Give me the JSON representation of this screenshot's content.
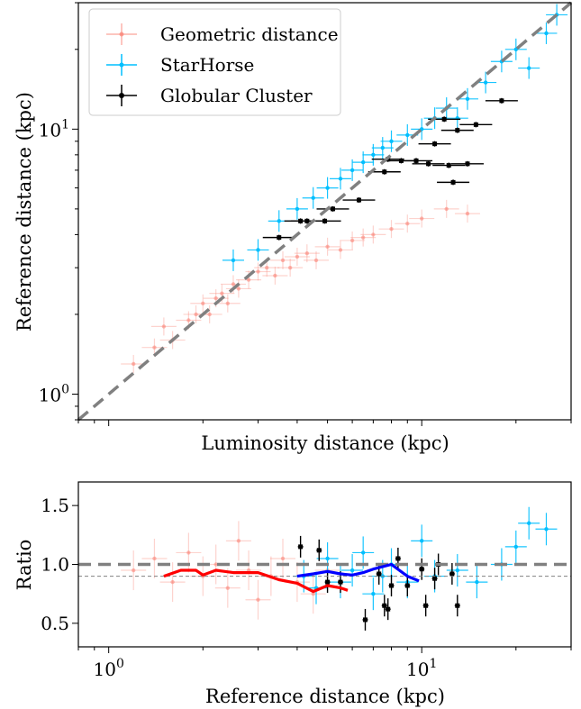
{
  "chart_data": [
    {
      "type": "scatter",
      "panel": "top",
      "xlabel": "Luminosity distance (kpc)",
      "ylabel": "Reference distance (kpc)",
      "xscale": "log",
      "yscale": "log",
      "xlim": [
        0.8,
        30
      ],
      "ylim": [
        0.8,
        30
      ],
      "y_ticks": [
        {
          "value": 1,
          "label": "10^0"
        },
        {
          "value": 10,
          "label": "10^1"
        }
      ],
      "x_ticks": [],
      "reference_line": {
        "type": "y=x",
        "style": "dashed",
        "color": "#808080"
      },
      "legend": {
        "position": "top-left",
        "entries": [
          {
            "label": "Geometric distance",
            "color": "#fa8072"
          },
          {
            "label": "StarHorse",
            "color": "#00bfff"
          },
          {
            "label": "Globular Cluster",
            "color": "#000000"
          }
        ]
      },
      "series": [
        {
          "name": "Geometric distance",
          "color": "#fa8072",
          "x": [
            1.2,
            1.4,
            1.5,
            1.6,
            1.8,
            1.9,
            2.0,
            2.1,
            2.2,
            2.3,
            2.4,
            2.5,
            2.6,
            2.8,
            3.0,
            3.2,
            3.4,
            3.6,
            3.8,
            4.0,
            4.3,
            4.6,
            5.0,
            5.5,
            6.0,
            6.5,
            7.0,
            8.0,
            9.0,
            10.0,
            12.0,
            14.0
          ],
          "y": [
            1.3,
            1.5,
            1.8,
            1.6,
            1.9,
            2.0,
            2.2,
            2.0,
            2.3,
            2.4,
            2.2,
            2.6,
            2.5,
            2.7,
            2.9,
            3.0,
            2.8,
            3.2,
            3.0,
            3.3,
            3.4,
            3.2,
            3.6,
            3.5,
            3.8,
            3.9,
            4.0,
            4.2,
            4.4,
            4.6,
            5.0,
            4.8
          ]
        },
        {
          "name": "StarHorse",
          "color": "#00bfff",
          "x": [
            2.5,
            3.0,
            3.5,
            4.0,
            4.5,
            5.0,
            5.5,
            6.0,
            6.5,
            7.0,
            7.5,
            8.0,
            9.0,
            10.0,
            11.0,
            12.0,
            13.0,
            14.0,
            16.0,
            18.0,
            20.0,
            22.0,
            25.0,
            27.0
          ],
          "y": [
            3.2,
            3.5,
            4.5,
            5.0,
            5.5,
            6.0,
            6.5,
            7.0,
            7.5,
            8.0,
            8.5,
            9.0,
            9.5,
            10.0,
            11.0,
            12.0,
            11.0,
            13.0,
            15.0,
            18.0,
            20.0,
            17.0,
            23.0,
            27.0
          ]
        },
        {
          "name": "Globular Cluster",
          "color": "#000000",
          "x": [
            3.5,
            4.1,
            4.3,
            4.9,
            5.2,
            6.3,
            7.6,
            7.8,
            8.6,
            9.6,
            10.5,
            11.0,
            11.8,
            12.2,
            12.6,
            13.0,
            14.0,
            14.9,
            18.0
          ],
          "y": [
            3.9,
            4.5,
            4.5,
            4.5,
            5.0,
            5.4,
            6.9,
            7.7,
            7.6,
            7.6,
            7.4,
            8.8,
            10.9,
            7.3,
            6.3,
            9.9,
            7.4,
            10.4,
            12.8
          ]
        }
      ]
    },
    {
      "type": "scatter",
      "panel": "bottom",
      "xlabel": "Reference distance (kpc)",
      "ylabel": "Ratio",
      "xscale": "log",
      "yscale": "linear",
      "xlim": [
        0.8,
        30
      ],
      "ylim": [
        0.3,
        1.7
      ],
      "x_ticks": [
        {
          "value": 1,
          "label": "10^0"
        },
        {
          "value": 10,
          "label": "10^1"
        }
      ],
      "y_ticks": [
        {
          "value": 0.5,
          "label": "0.5"
        },
        {
          "value": 1.0,
          "label": "1.0"
        },
        {
          "value": 1.5,
          "label": "1.5"
        }
      ],
      "reference_lines": [
        {
          "y": 1.0,
          "style": "dashed",
          "color": "#808080"
        },
        {
          "y": 0.9,
          "style": "thin-dashed",
          "color": "#808080"
        }
      ],
      "series": [
        {
          "name": "Geometric distance",
          "color": "#fa8072",
          "x": [
            1.2,
            1.4,
            1.6,
            1.8,
            2.0,
            2.2,
            2.4,
            2.6,
            2.8,
            3.0,
            3.3,
            3.6,
            4.0,
            4.5,
            5.0
          ],
          "y": [
            0.95,
            1.05,
            0.85,
            1.1,
            0.9,
            1.0,
            0.8,
            1.2,
            0.95,
            0.7,
            0.9,
            1.05,
            0.85,
            0.75,
            0.95
          ]
        },
        {
          "name": "StarHorse",
          "color": "#00bfff",
          "x": [
            4.2,
            4.6,
            5.0,
            5.5,
            6.0,
            6.5,
            7.0,
            7.5,
            8.0,
            9.0,
            10.0,
            11.0,
            13.0,
            15.0,
            18.0,
            20.0,
            22.0,
            25.0
          ],
          "y": [
            0.9,
            0.8,
            1.05,
            0.85,
            0.95,
            1.1,
            0.75,
            0.9,
            1.0,
            0.85,
            1.2,
            0.9,
            0.95,
            0.85,
            1.0,
            1.15,
            1.35,
            1.3
          ]
        },
        {
          "name": "Globular Cluster",
          "color": "#000000",
          "x": [
            4.1,
            4.7,
            5.0,
            5.5,
            6.6,
            7.3,
            7.6,
            7.8,
            8.0,
            8.4,
            9.0,
            10.0,
            10.3,
            11.0,
            11.3,
            12.5,
            13.0
          ],
          "y": [
            1.15,
            1.12,
            0.85,
            0.85,
            0.53,
            0.92,
            0.65,
            0.62,
            0.82,
            1.05,
            0.82,
            0.96,
            0.65,
            0.88,
            1.0,
            0.92,
            0.65
          ]
        }
      ],
      "lines": [
        {
          "name": "Geometric distance running median",
          "color": "#ff0000",
          "x": [
            1.5,
            1.7,
            1.9,
            2.0,
            2.2,
            2.5,
            3.0,
            3.5,
            4.0,
            4.5,
            5.0,
            5.5,
            5.8
          ],
          "y": [
            0.9,
            0.95,
            0.95,
            0.91,
            0.95,
            0.93,
            0.93,
            0.87,
            0.84,
            0.77,
            0.82,
            0.8,
            0.78
          ]
        },
        {
          "name": "StarHorse running median",
          "color": "#0000ff",
          "x": [
            4.0,
            4.5,
            5.0,
            5.5,
            6.0,
            6.5,
            7.0,
            8.0,
            9.0,
            9.8
          ],
          "y": [
            0.9,
            0.92,
            0.94,
            0.92,
            0.91,
            0.93,
            0.96,
            1.0,
            0.9,
            0.86
          ]
        }
      ]
    }
  ]
}
